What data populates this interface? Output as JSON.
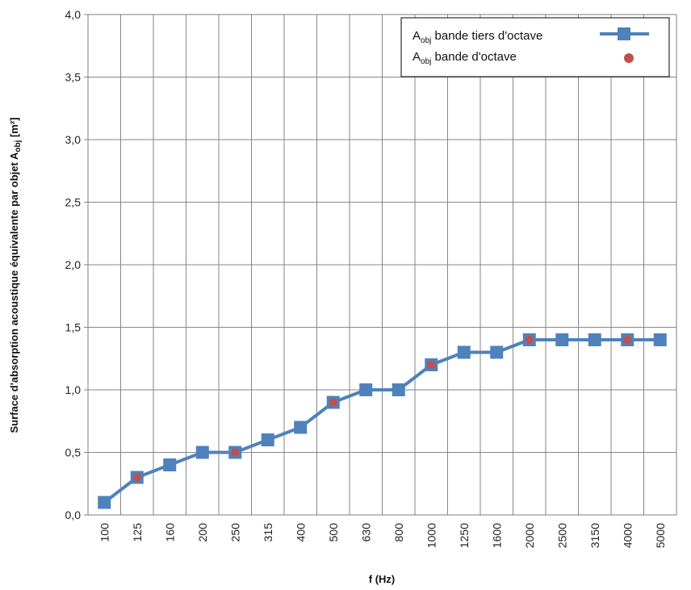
{
  "chart_data": {
    "type": "line",
    "categories": [
      "100",
      "125",
      "160",
      "200",
      "250",
      "315",
      "400",
      "500",
      "630",
      "800",
      "1000",
      "1250",
      "1600",
      "2000",
      "2500",
      "3150",
      "4000",
      "5000"
    ],
    "ylim": [
      0,
      4.0
    ],
    "yticks": [
      "0,0",
      "0,5",
      "1,0",
      "1,5",
      "2,0",
      "2,5",
      "3,0",
      "3,5",
      "4,0"
    ],
    "xlabel": "f (Hz)",
    "ylabel_prefix": "Surface d'absorption acoustique équivalente par objet A",
    "ylabel_sub": "obj",
    "ylabel_suffix": " [m²]",
    "grid": true,
    "legend_position": "top-right",
    "series": [
      {
        "name_main": "A",
        "name_sub": "obj",
        "name_rest": " bande tiers d'octave",
        "style": "line-square",
        "color": "#4F81BD",
        "x": [
          "100",
          "125",
          "160",
          "200",
          "250",
          "315",
          "400",
          "500",
          "630",
          "800",
          "1000",
          "1250",
          "1600",
          "2000",
          "2500",
          "3150",
          "4000",
          "5000"
        ],
        "values": [
          0.1,
          0.3,
          0.4,
          0.5,
          0.5,
          0.6,
          0.7,
          0.9,
          1.0,
          1.0,
          1.2,
          1.3,
          1.3,
          1.4,
          1.4,
          1.4,
          1.4,
          1.4
        ]
      },
      {
        "name_main": "A",
        "name_sub": "obj",
        "name_rest": " bande d'octave",
        "style": "dot",
        "color": "#C0504D",
        "x": [
          "125",
          "250",
          "500",
          "1000",
          "2000",
          "4000"
        ],
        "values": [
          0.3,
          0.5,
          0.9,
          1.2,
          1.4,
          1.4
        ]
      }
    ]
  }
}
